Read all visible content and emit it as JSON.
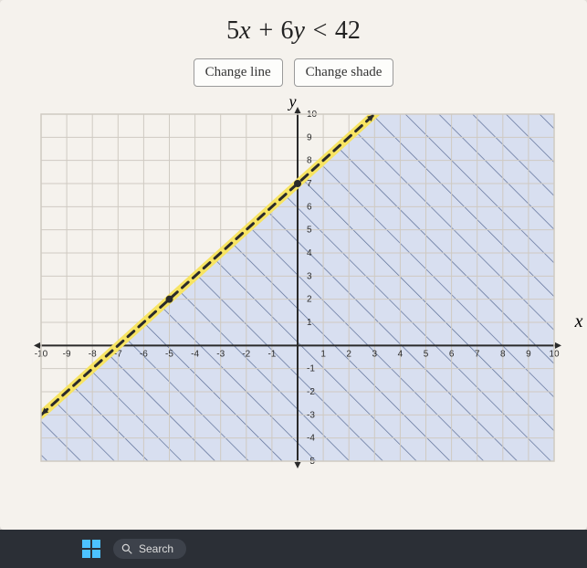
{
  "equation": {
    "text": "5x + 6y < 42",
    "fontsize": 28
  },
  "buttons": {
    "change_line": "Change line",
    "change_shade": "Change shade"
  },
  "chart": {
    "type": "inequality-graph",
    "xlim": [
      -10,
      10
    ],
    "ylim": [
      -5,
      10
    ],
    "xtick_step": 1,
    "ytick_step": 1,
    "x_labels": [
      "-10",
      "-9",
      "-8",
      "-7",
      "-6",
      "-5",
      "-4",
      "-3",
      "-2",
      "-1",
      "",
      "1",
      "2",
      "3",
      "4",
      "5",
      "6",
      "7",
      "8",
      "9",
      "10"
    ],
    "y_labels_pos": [
      "1",
      "2",
      "3",
      "4",
      "5",
      "6",
      "7",
      "8",
      "9",
      "10"
    ],
    "y_labels_neg": [
      "-1",
      "-2",
      "-3",
      "-4",
      "-5"
    ],
    "axis_y_label": "y",
    "axis_x_label": "x",
    "background_color": "#f5f2ed",
    "grid_color": "#cfcac2",
    "axis_color": "#2a2a2a",
    "tick_label_fontsize": 10,
    "line": {
      "style": "dashed",
      "color": "#2a2a2a",
      "highlight_color": "#f7e463",
      "width": 3,
      "p1": {
        "x": -10,
        "y": -3
      },
      "p2": {
        "x": 4,
        "y": 11
      }
    },
    "plotted_points": [
      {
        "x": -5,
        "y": 2,
        "color": "#2a2a2a",
        "r": 4
      },
      {
        "x": 0,
        "y": 7,
        "color": "#2a2a2a",
        "r": 4
      }
    ],
    "shade": {
      "side": "below-right",
      "fill": "#d8dff0",
      "hatch_color": "#5a6c95",
      "hatch_spacing": 26,
      "hatch_angle": -45
    }
  },
  "taskbar": {
    "search_placeholder": "Search"
  }
}
